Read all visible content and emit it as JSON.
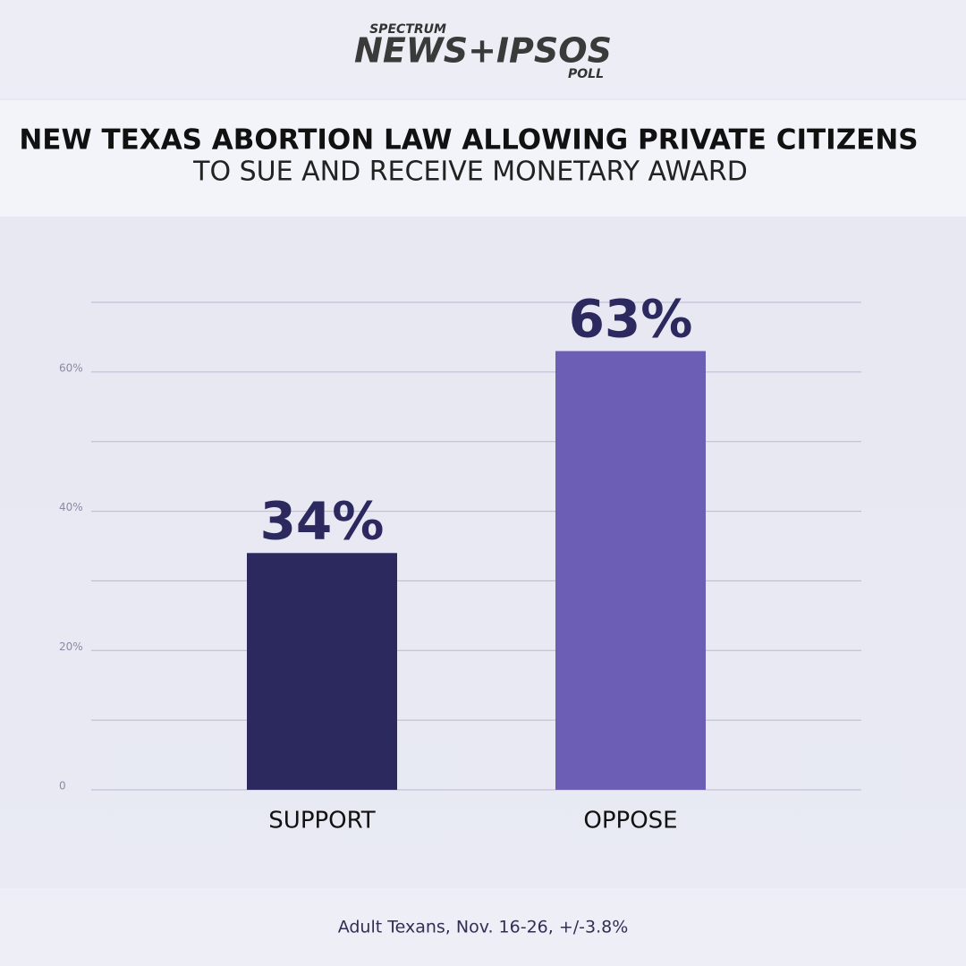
{
  "header": {
    "brand_top": "SPECTRUM",
    "brand_main": "NEWS+IPSOS",
    "brand_bottom": "POLL"
  },
  "chart_data": {
    "type": "bar",
    "title": "NEW TEXAS ABORTION LAW ALLOWING PRIVATE CITIZENS",
    "subtitle": "TO SUE AND RECEIVE MONETARY AWARD",
    "categories": [
      "SUPPORT",
      "OPPOSE"
    ],
    "values": [
      34,
      63
    ],
    "value_labels": [
      "34%",
      "63%"
    ],
    "colors": [
      "#2c295e",
      "#6c5eb5"
    ],
    "ylim": [
      0,
      70
    ],
    "yticks": [
      0,
      {
        "value": 10,
        "label": null
      },
      {
        "value": 20,
        "label": "20%"
      },
      {
        "value": 30,
        "label": null
      },
      {
        "value": 40,
        "label": "40%"
      },
      {
        "value": 50,
        "label": null
      },
      {
        "value": 60,
        "label": "60%"
      },
      {
        "value": 70,
        "label": null
      }
    ],
    "grid": true,
    "footnote": "Adult Texans, Nov. 16-26, +/-3.8%"
  }
}
